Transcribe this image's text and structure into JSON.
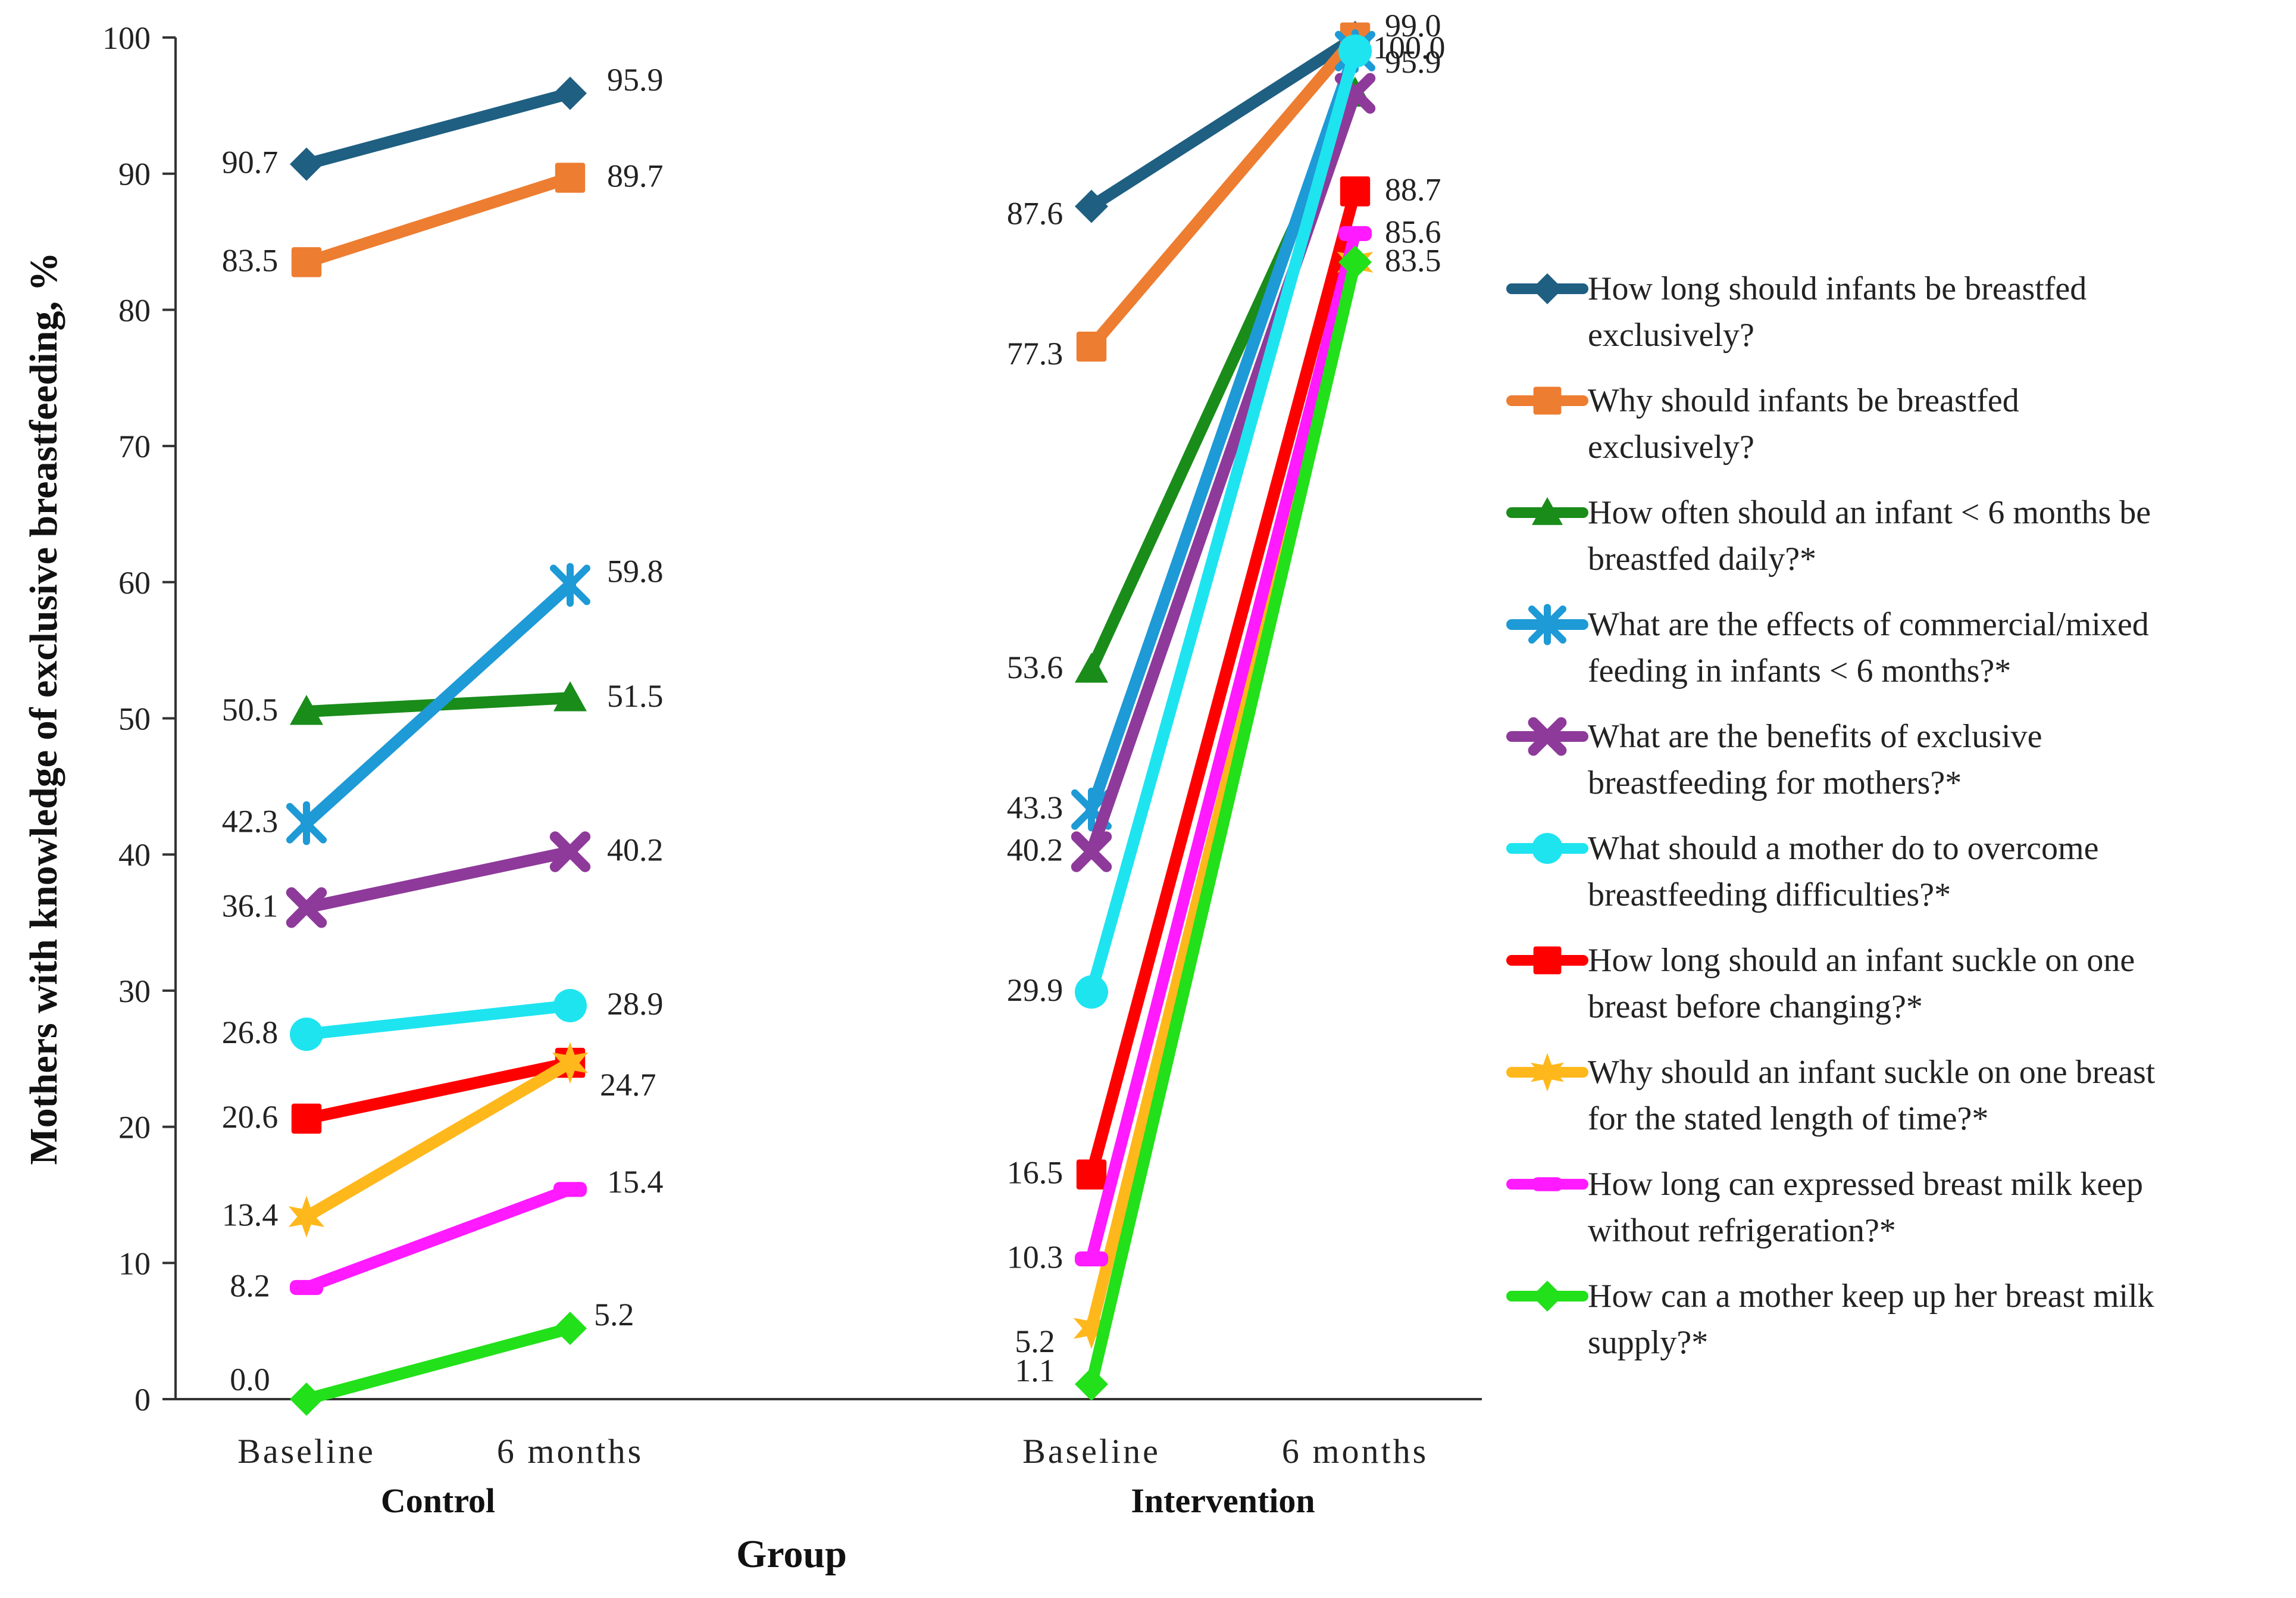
{
  "chart_data": {
    "type": "line",
    "xlabel": "Group",
    "ylabel": "Mothers with knowledge of exclusive breastfeeding, %",
    "ylim": [
      0,
      100
    ],
    "yticks": [
      "0",
      "10",
      "20",
      "30",
      "40",
      "50",
      "60",
      "70",
      "80",
      "90",
      "100"
    ],
    "grid": false,
    "legend_position": "right",
    "groups": [
      {
        "name": "Control",
        "categories": [
          "Baseline",
          "6 months"
        ]
      },
      {
        "name": "Intervention",
        "categories": [
          "Baseline",
          "6 months"
        ]
      }
    ],
    "series": [
      {
        "name": "How long should infants be breastfed exclusively?",
        "color": "#1f5f82",
        "marker": "diamond",
        "control": [
          90.7,
          95.9
        ],
        "intervention": [
          87.6,
          100.0
        ],
        "control_labels": [
          "90.7",
          "95.9"
        ],
        "intervention_labels": [
          "87.6",
          ""
        ]
      },
      {
        "name": "Why should infants be breastfed exclusively?",
        "color": "#ed7d31",
        "marker": "square",
        "control": [
          83.5,
          89.7
        ],
        "intervention": [
          77.3,
          100.0
        ],
        "control_labels": [
          "83.5",
          "89.7"
        ],
        "intervention_labels": [
          "77.3",
          "100.0"
        ]
      },
      {
        "name": "How often should an infant < 6 months be breastfed daily?*",
        "color": "#1a8c1a",
        "marker": "triangle",
        "control": [
          50.5,
          51.5
        ],
        "intervention": [
          53.6,
          95.9
        ],
        "control_labels": [
          "50.5",
          "51.5"
        ],
        "intervention_labels": [
          "53.6",
          "95.9"
        ]
      },
      {
        "name": "What are the effects of commercial/mixed feeding in infants < 6 months?*",
        "color": "#1e9ad6",
        "marker": "star",
        "control": [
          42.3,
          59.8
        ],
        "intervention": [
          43.3,
          99.0
        ],
        "control_labels": [
          "42.3",
          "59.8"
        ],
        "intervention_labels": [
          "43.3",
          "99.0"
        ]
      },
      {
        "name": "What are the benefits of exclusive breastfeeding for mothers?*",
        "color": "#8e3a9a",
        "marker": "cross",
        "control": [
          36.1,
          40.2
        ],
        "intervention": [
          40.2,
          95.9
        ],
        "control_labels": [
          "36.1",
          "40.2"
        ],
        "intervention_labels": [
          "40.2",
          ""
        ]
      },
      {
        "name": "What should a mother do to overcome breastfeeding difficulties?*",
        "color": "#1ee4f0",
        "marker": "circle",
        "control": [
          26.8,
          28.9
        ],
        "intervention": [
          29.9,
          99.0
        ],
        "control_labels": [
          "26.8",
          "28.9"
        ],
        "intervention_labels": [
          "29.9",
          ""
        ]
      },
      {
        "name": "How long should an infant suckle on one breast before changing?*",
        "color": "#ff0000",
        "marker": "square",
        "control": [
          20.6,
          24.7
        ],
        "intervention": [
          16.5,
          88.7
        ],
        "control_labels": [
          "20.6",
          "24.7"
        ],
        "intervention_labels": [
          "16.5",
          "88.7"
        ]
      },
      {
        "name": "Why should an infant suckle on one breast for the stated length of time?*",
        "color": "#ffb81c",
        "marker": "star6",
        "control": [
          13.4,
          24.7
        ],
        "intervention": [
          5.2,
          83.5
        ],
        "control_labels": [
          "13.4",
          ""
        ],
        "intervention_labels": [
          "5.2",
          ""
        ]
      },
      {
        "name": "How long can expressed breast milk keep without refrigeration?*",
        "color": "#ff1aff",
        "marker": "dash",
        "control": [
          8.2,
          15.4
        ],
        "intervention": [
          10.3,
          85.6
        ],
        "control_labels": [
          "8.2",
          "15.4"
        ],
        "intervention_labels": [
          "10.3",
          "85.6"
        ]
      },
      {
        "name": "How can a mother keep up her breast milk supply?*",
        "color": "#22e01a",
        "marker": "diamond",
        "control": [
          0.0,
          5.2
        ],
        "intervention": [
          1.1,
          83.5
        ],
        "control_labels": [
          "0.0",
          "5.2"
        ],
        "intervention_labels": [
          "1.1",
          "83.5"
        ]
      }
    ],
    "legend_lines": [
      [
        "How long should infants be breastfed",
        "exclusively?"
      ],
      [
        "Why should infants be breastfed",
        "exclusively?"
      ],
      [
        "How often should an infant < 6 months be",
        "breastfed daily?*"
      ],
      [
        "What are the effects of commercial/mixed",
        "feeding in infants < 6 months?*"
      ],
      [
        "What are the benefits of exclusive",
        "breastfeeding for mothers?*"
      ],
      [
        "What should a mother do to overcome",
        "breastfeeding difficulties?*"
      ],
      [
        "How long should an infant suckle on one",
        "breast before changing?*"
      ],
      [
        "Why should an infant suckle on one breast",
        "for the stated length of time?*"
      ],
      [
        "How long can expressed breast milk keep",
        "without refrigeration?*"
      ],
      [
        "How can a mother keep up her breast milk",
        "supply?*"
      ]
    ]
  }
}
